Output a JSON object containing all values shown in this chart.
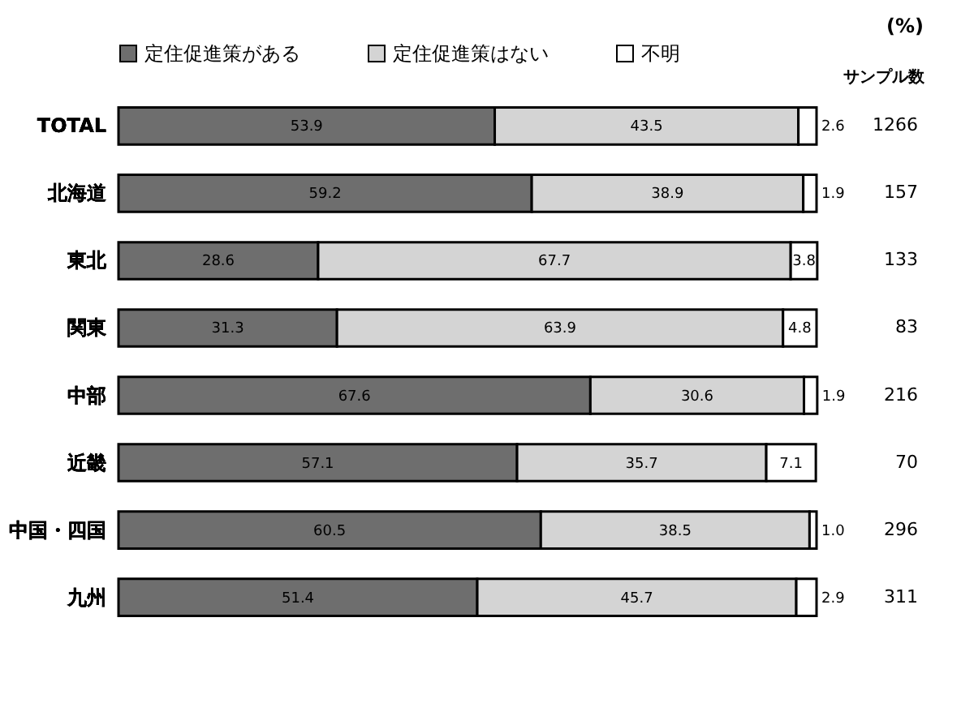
{
  "chart_data": {
    "type": "bar",
    "orientation": "horizontal",
    "stacked": true,
    "legend": "top",
    "grid": false,
    "categories": [
      "TOTAL",
      "北海道",
      "東北",
      "関東",
      "中部",
      "近畿",
      "中国・四国",
      "九州"
    ],
    "y2_categories": [
      "1266",
      "157",
      "133",
      "83",
      "216",
      "70",
      "296",
      "311"
    ],
    "y2label": "サンプル数",
    "annotations": [
      "(%)"
    ],
    "series": [
      {
        "name": "定住促進策がある",
        "color": "#6e6e6e",
        "values": [
          53.9,
          59.2,
          28.6,
          31.3,
          67.6,
          57.1,
          60.5,
          51.4
        ],
        "value_labels": [
          "53.9",
          "59.2",
          "28.6",
          "31.3",
          "67.6",
          "57.1",
          "60.5",
          "51.4"
        ]
      },
      {
        "name": "定住促進策はない",
        "color": "#d4d4d4",
        "values": [
          43.5,
          38.9,
          67.7,
          63.9,
          30.6,
          35.7,
          38.5,
          45.7
        ],
        "value_labels": [
          "43.5",
          "38.9",
          "67.7",
          "63.9",
          "30.6",
          "35.7",
          "38.5",
          "45.7"
        ]
      },
      {
        "name": "不明",
        "color": "#ffffff",
        "values": [
          2.6,
          1.9,
          3.8,
          4.8,
          1.9,
          7.1,
          1.0,
          2.9
        ],
        "value_labels": [
          "2.6",
          "1.9",
          "3.8",
          "4.8",
          "1.9",
          "7.1",
          "1.0",
          "2.9"
        ]
      }
    ]
  }
}
